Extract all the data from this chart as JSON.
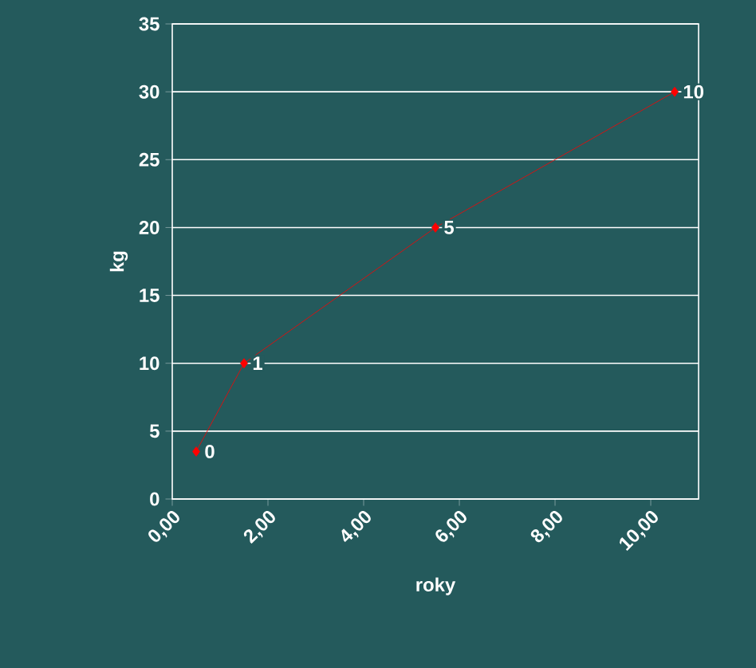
{
  "chart_data": {
    "type": "line",
    "xlabel": "roky",
    "ylabel": "kg",
    "x": [
      0.5,
      1.5,
      5.5,
      10.5
    ],
    "values": [
      3.5,
      10,
      20,
      30
    ],
    "color": "#ff0000",
    "marker": "diamond",
    "line_style": "solid",
    "grid": "y",
    "xlim": [
      0,
      11
    ],
    "ylim": [
      0,
      35
    ],
    "xticks": [
      {
        "value": 0,
        "label": "0,00"
      },
      {
        "value": 2,
        "label": "2,00"
      },
      {
        "value": 4,
        "label": "4,00"
      },
      {
        "value": 6,
        "label": "6,00"
      },
      {
        "value": 8,
        "label": "8,00"
      },
      {
        "value": 10,
        "label": "10,00"
      }
    ],
    "yticks": [
      0,
      5,
      10,
      15,
      20,
      25,
      30,
      35
    ],
    "annotations": [
      {
        "text": "0",
        "x": 0.5,
        "y": 3.5
      },
      {
        "text": "1",
        "x": 1.5,
        "y": 10
      },
      {
        "text": "5",
        "x": 5.5,
        "y": 20
      },
      {
        "text": "10",
        "x": 10.5,
        "y": 30
      }
    ]
  }
}
